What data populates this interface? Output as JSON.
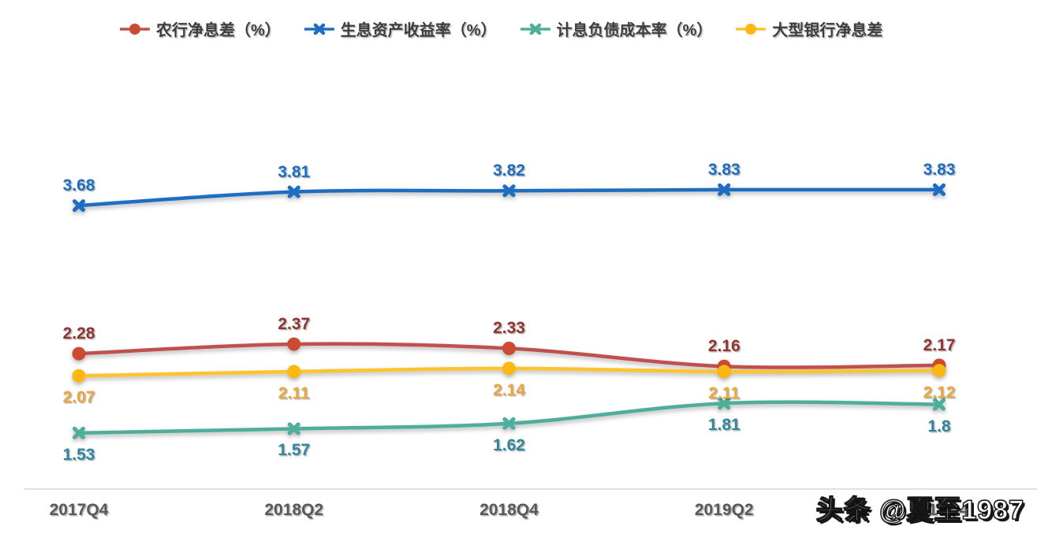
{
  "watermark": {
    "text": "头条 @夏至1987"
  },
  "chart_data": {
    "type": "line",
    "title": "",
    "categories": [
      "2017Q4",
      "2018Q2",
      "2018Q4",
      "2019Q2",
      "2019Q4"
    ],
    "series": [
      {
        "name": "农行净息差（%）",
        "values": [
          2.28,
          2.37,
          2.33,
          2.16,
          2.17
        ],
        "labels": [
          "2.28",
          "2.37",
          "2.33",
          "2.16",
          "2.17"
        ],
        "color": "#c0504d",
        "marker_color": "#cc4a31",
        "label_color": "#8e3431",
        "marker": "circle",
        "label_position": "above"
      },
      {
        "name": "生息资产收益率（%）",
        "values": [
          3.68,
          3.81,
          3.82,
          3.83,
          3.83
        ],
        "labels": [
          "3.68",
          "3.81",
          "3.82",
          "3.83",
          "3.83"
        ],
        "color": "#1d6ec2",
        "marker_color": "#1d6ec2",
        "label_color": "#1d6ec2",
        "marker": "x",
        "label_position": "above"
      },
      {
        "name": "计息负债成本率（%）",
        "values": [
          1.53,
          1.57,
          1.62,
          1.81,
          1.8
        ],
        "labels": [
          "1.53",
          "1.57",
          "1.62",
          "1.81",
          "1.8"
        ],
        "color": "#4fae9b",
        "marker_color": "#4fae9b",
        "label_color": "#31859c",
        "marker": "x",
        "label_position": "below"
      },
      {
        "name": "大型银行净息差",
        "values": [
          2.07,
          2.11,
          2.14,
          2.11,
          2.12
        ],
        "labels": [
          "2.07",
          "2.11",
          "2.14",
          "2.11",
          "2.12"
        ],
        "color": "#ffc32c",
        "marker_color": "#fcb713",
        "label_color": "#eda63c",
        "marker": "circle",
        "label_position": "below"
      }
    ],
    "ylim": [
      1.0,
      4.85
    ],
    "grid": false,
    "legend_position": "top",
    "axis_text_color": "#595959",
    "axis_line_color": "#d9d9d9"
  }
}
